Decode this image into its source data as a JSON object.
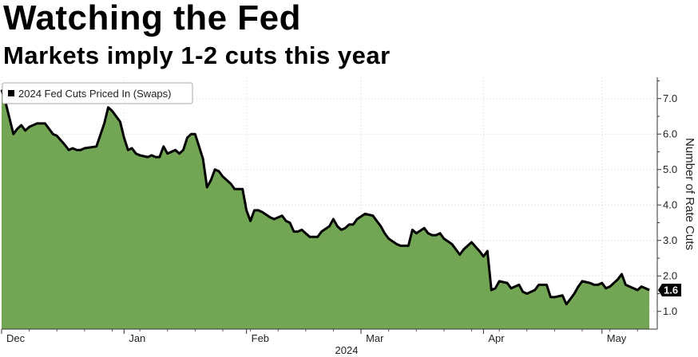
{
  "title": "Watching the Fed",
  "subtitle": "Markets imply 1-2 cuts this year",
  "chart_data": {
    "type": "area",
    "legend": {
      "entries": [
        "2024 Fed Cuts Priced In (Swaps)"
      ],
      "placement": "top-left"
    },
    "ylabel": "Number of Rate Cuts",
    "xlabel": "",
    "year_label": "2024",
    "ylim": [
      0.5,
      7.6
    ],
    "yticks": [
      1.0,
      2.0,
      3.0,
      4.0,
      5.0,
      6.0,
      7.0
    ],
    "ytick_labels": [
      "1.0",
      "2.0",
      "3.0",
      "4.0",
      "5.0",
      "6.0",
      "7.0"
    ],
    "xlim": [
      "2023-12-01",
      "2024-05-15"
    ],
    "xticks": [
      {
        "label": "Dec",
        "date": "2023-12-01"
      },
      {
        "label": "Jan",
        "date": "2024-01-01"
      },
      {
        "label": "Feb",
        "date": "2024-02-01"
      },
      {
        "label": "Mar",
        "date": "2024-03-01"
      },
      {
        "label": "Apr",
        "date": "2024-04-01"
      },
      {
        "label": "May",
        "date": "2024-05-01"
      }
    ],
    "last_value_label": "1.6",
    "series": [
      {
        "name": "2024 Fed Cuts Priced In (Swaps)",
        "color": "#000000",
        "fill_color": "#72a655",
        "points": [
          [
            "2023-12-01",
            7.25
          ],
          [
            "2023-12-02",
            6.9
          ],
          [
            "2023-12-04",
            6.0
          ],
          [
            "2023-12-05",
            6.15
          ],
          [
            "2023-12-06",
            6.25
          ],
          [
            "2023-12-07",
            6.1
          ],
          [
            "2023-12-08",
            6.2
          ],
          [
            "2023-12-10",
            6.3
          ],
          [
            "2023-12-11",
            6.3
          ],
          [
            "2023-12-12",
            6.3
          ],
          [
            "2023-12-13",
            6.15
          ],
          [
            "2023-12-14",
            6.0
          ],
          [
            "2023-12-15",
            5.95
          ],
          [
            "2023-12-17",
            5.7
          ],
          [
            "2023-12-18",
            5.55
          ],
          [
            "2023-12-19",
            5.6
          ],
          [
            "2023-12-20",
            5.55
          ],
          [
            "2023-12-21",
            5.55
          ],
          [
            "2023-12-22",
            5.6
          ],
          [
            "2023-12-25",
            5.65
          ],
          [
            "2023-12-27",
            6.3
          ],
          [
            "2023-12-28",
            6.75
          ],
          [
            "2023-12-29",
            6.65
          ],
          [
            "2023-12-31",
            6.35
          ],
          [
            "2024-01-01",
            5.9
          ],
          [
            "2024-01-02",
            5.55
          ],
          [
            "2024-01-03",
            5.6
          ],
          [
            "2024-01-04",
            5.45
          ],
          [
            "2024-01-05",
            5.4
          ],
          [
            "2024-01-07",
            5.35
          ],
          [
            "2024-01-08",
            5.4
          ],
          [
            "2024-01-09",
            5.35
          ],
          [
            "2024-01-10",
            5.35
          ],
          [
            "2024-01-11",
            5.65
          ],
          [
            "2024-01-12",
            5.45
          ],
          [
            "2024-01-14",
            5.55
          ],
          [
            "2024-01-15",
            5.45
          ],
          [
            "2024-01-16",
            5.55
          ],
          [
            "2024-01-17",
            5.9
          ],
          [
            "2024-01-18",
            6.0
          ],
          [
            "2024-01-19",
            6.0
          ],
          [
            "2024-01-21",
            5.3
          ],
          [
            "2024-01-22",
            4.5
          ],
          [
            "2024-01-23",
            4.7
          ],
          [
            "2024-01-24",
            5.0
          ],
          [
            "2024-01-25",
            4.95
          ],
          [
            "2024-01-26",
            4.8
          ],
          [
            "2024-01-28",
            4.6
          ],
          [
            "2024-01-29",
            4.45
          ],
          [
            "2024-01-31",
            4.45
          ],
          [
            "2024-02-01",
            3.85
          ],
          [
            "2024-02-02",
            3.55
          ],
          [
            "2024-02-03",
            3.85
          ],
          [
            "2024-02-04",
            3.85
          ],
          [
            "2024-02-05",
            3.8
          ],
          [
            "2024-02-07",
            3.65
          ],
          [
            "2024-02-08",
            3.6
          ],
          [
            "2024-02-10",
            3.7
          ],
          [
            "2024-02-11",
            3.55
          ],
          [
            "2024-02-12",
            3.5
          ],
          [
            "2024-02-13",
            3.25
          ],
          [
            "2024-02-14",
            3.25
          ],
          [
            "2024-02-15",
            3.3
          ],
          [
            "2024-02-17",
            3.1
          ],
          [
            "2024-02-18",
            3.1
          ],
          [
            "2024-02-19",
            3.1
          ],
          [
            "2024-02-20",
            3.25
          ],
          [
            "2024-02-22",
            3.4
          ],
          [
            "2024-02-23",
            3.6
          ],
          [
            "2024-02-24",
            3.4
          ],
          [
            "2024-02-25",
            3.3
          ],
          [
            "2024-02-26",
            3.35
          ],
          [
            "2024-02-27",
            3.45
          ],
          [
            "2024-02-28",
            3.45
          ],
          [
            "2024-02-29",
            3.6
          ],
          [
            "2024-03-02",
            3.75
          ],
          [
            "2024-03-04",
            3.7
          ],
          [
            "2024-03-05",
            3.55
          ],
          [
            "2024-03-06",
            3.4
          ],
          [
            "2024-03-07",
            3.2
          ],
          [
            "2024-03-08",
            3.05
          ],
          [
            "2024-03-10",
            2.9
          ],
          [
            "2024-03-11",
            2.85
          ],
          [
            "2024-03-12",
            2.85
          ],
          [
            "2024-03-13",
            2.85
          ],
          [
            "2024-03-14",
            3.3
          ],
          [
            "2024-03-15",
            3.2
          ],
          [
            "2024-03-17",
            3.35
          ],
          [
            "2024-03-18",
            3.2
          ],
          [
            "2024-03-19",
            3.15
          ],
          [
            "2024-03-20",
            3.15
          ],
          [
            "2024-03-21",
            3.2
          ],
          [
            "2024-03-22",
            3.05
          ],
          [
            "2024-03-24",
            2.9
          ],
          [
            "2024-03-25",
            2.75
          ],
          [
            "2024-03-26",
            2.6
          ],
          [
            "2024-03-27",
            2.75
          ],
          [
            "2024-03-28",
            2.85
          ],
          [
            "2024-03-29",
            2.95
          ],
          [
            "2024-03-31",
            2.7
          ],
          [
            "2024-04-01",
            2.55
          ],
          [
            "2024-04-02",
            2.7
          ],
          [
            "2024-04-03",
            1.6
          ],
          [
            "2024-04-04",
            1.65
          ],
          [
            "2024-04-05",
            1.85
          ],
          [
            "2024-04-07",
            1.8
          ],
          [
            "2024-04-08",
            1.65
          ],
          [
            "2024-04-10",
            1.75
          ],
          [
            "2024-04-11",
            1.55
          ],
          [
            "2024-04-12",
            1.5
          ],
          [
            "2024-04-14",
            1.6
          ],
          [
            "2024-04-15",
            1.75
          ],
          [
            "2024-04-17",
            1.75
          ],
          [
            "2024-04-18",
            1.4
          ],
          [
            "2024-04-19",
            1.4
          ],
          [
            "2024-04-21",
            1.45
          ],
          [
            "2024-04-22",
            1.2
          ],
          [
            "2024-04-23",
            1.35
          ],
          [
            "2024-04-24",
            1.5
          ],
          [
            "2024-04-25",
            1.7
          ],
          [
            "2024-04-26",
            1.85
          ],
          [
            "2024-04-28",
            1.8
          ],
          [
            "2024-04-29",
            1.75
          ],
          [
            "2024-04-30",
            1.75
          ],
          [
            "2024-05-01",
            1.8
          ],
          [
            "2024-05-02",
            1.65
          ],
          [
            "2024-05-03",
            1.7
          ],
          [
            "2024-05-05",
            1.9
          ],
          [
            "2024-05-06",
            2.05
          ],
          [
            "2024-05-07",
            1.75
          ],
          [
            "2024-05-08",
            1.7
          ],
          [
            "2024-05-10",
            1.6
          ],
          [
            "2024-05-11",
            1.7
          ],
          [
            "2024-05-12",
            1.65
          ],
          [
            "2024-05-13",
            1.6
          ]
        ]
      }
    ]
  }
}
